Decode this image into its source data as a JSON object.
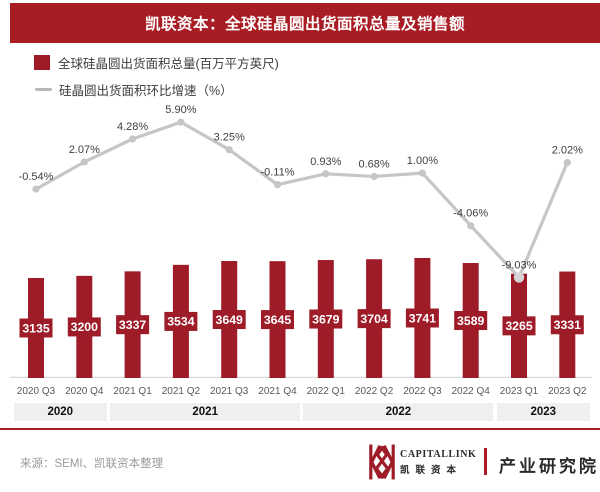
{
  "header": {
    "title": "凯联资本：全球硅晶圆出货面积总量及销售额"
  },
  "legend": {
    "bar_label": "全球硅晶圆出货面积总量(百万平方英尺)",
    "line_label": "硅晶圆出货面积环比增速（%）"
  },
  "chart_data": {
    "type": "bar+line",
    "categories": [
      "2020 Q3",
      "2020 Q4",
      "2021 Q1",
      "2021 Q2",
      "2021 Q3",
      "2021 Q4",
      "2022 Q1",
      "2022 Q2",
      "2022 Q3",
      "2022 Q4",
      "2023 Q1",
      "2023 Q2"
    ],
    "series": [
      {
        "name": "全球硅晶圆出货面积总量",
        "unit": "百万平方英尺",
        "type": "bar",
        "values": [
          3135,
          3200,
          3337,
          3534,
          3649,
          3645,
          3679,
          3704,
          3741,
          3589,
          3265,
          3331
        ]
      },
      {
        "name": "硅晶圆出货面积环比增速",
        "unit": "%",
        "type": "line",
        "values": [
          -0.54,
          2.07,
          4.28,
          5.9,
          3.25,
          -0.11,
          0.93,
          0.68,
          1.0,
          -4.06,
          -9.03,
          2.02
        ]
      }
    ],
    "year_groups": [
      {
        "label": "2020",
        "span": 2
      },
      {
        "label": "2021",
        "span": 4
      },
      {
        "label": "2022",
        "span": 4
      },
      {
        "label": "2023",
        "span": 2
      }
    ],
    "legend_position": "top-left",
    "grid": false,
    "value_labels_shown": true
  },
  "colors": {
    "banner_bg": "#a81c24",
    "bar_fill": "#9e1b28",
    "line_stroke": "#c6c6c6",
    "pct_label": "#3f3f3f",
    "axis_line": "#d9d9d9",
    "year_box_bg": "#efefef"
  },
  "footer": {
    "source": "来源：SEMI、凯联资本整理",
    "brand_en": "CAPITALLINK",
    "brand_cn": "凯联资本",
    "division": "产业研究院"
  }
}
